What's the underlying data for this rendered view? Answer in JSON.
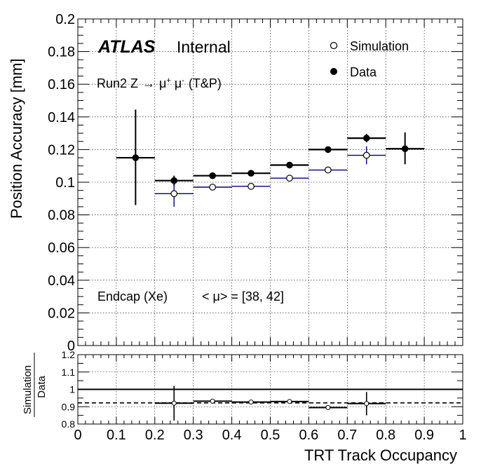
{
  "chart_data": [
    {
      "type": "scatter",
      "panel": "main",
      "ylabel": "Position Accuracy [mm]",
      "xlim": [
        0,
        1
      ],
      "ylim": [
        0,
        0.2
      ],
      "grid": true,
      "x_tick_values": [
        0,
        0.1,
        0.2,
        0.3,
        0.4,
        0.5,
        0.6,
        0.7,
        0.8,
        0.9,
        1
      ],
      "y_tick_labels": [
        "0",
        "0.02",
        "0.04",
        "0.06",
        "0.08",
        "0.1",
        "0.12",
        "0.14",
        "0.16",
        "0.18",
        "0.2"
      ],
      "annotations": {
        "atlas": "ATLAS",
        "internal": "Internal",
        "process_prefix": "Run2 Z",
        "process_arrow": "→",
        "process_mu": "μ",
        "process_plus": "+",
        "process_minus": "-",
        "process_suffix": "(T&P)",
        "region": "Endcap (Xe)",
        "pileup": "< μ> = [38, 42]"
      },
      "legend_position": "top-right",
      "series": [
        {
          "name": "Simulation",
          "marker": "open-circle",
          "color": "#00007a",
          "points": [
            {
              "x": 0.25,
              "y": 0.093,
              "ylo": 0.085,
              "yhi": 0.101
            },
            {
              "x": 0.35,
              "y": 0.097,
              "ylo": 0.096,
              "yhi": 0.098
            },
            {
              "x": 0.45,
              "y": 0.0975,
              "ylo": 0.0965,
              "yhi": 0.0985
            },
            {
              "x": 0.55,
              "y": 0.1025,
              "ylo": 0.1015,
              "yhi": 0.1035
            },
            {
              "x": 0.65,
              "y": 0.1075,
              "ylo": 0.1065,
              "yhi": 0.1085
            },
            {
              "x": 0.75,
              "y": 0.1165,
              "ylo": 0.111,
              "yhi": 0.122
            }
          ]
        },
        {
          "name": "Data",
          "marker": "filled-circle",
          "color": "#000000",
          "points": [
            {
              "x": 0.15,
              "y": 0.115,
              "ylo": 0.086,
              "yhi": 0.1445
            },
            {
              "x": 0.25,
              "y": 0.101,
              "ylo": 0.098,
              "yhi": 0.104
            },
            {
              "x": 0.35,
              "y": 0.104,
              "ylo": 0.1025,
              "yhi": 0.1055
            },
            {
              "x": 0.45,
              "y": 0.1055,
              "ylo": 0.1045,
              "yhi": 0.1065
            },
            {
              "x": 0.55,
              "y": 0.1105,
              "ylo": 0.1095,
              "yhi": 0.1115
            },
            {
              "x": 0.65,
              "y": 0.12,
              "ylo": 0.119,
              "yhi": 0.121
            },
            {
              "x": 0.75,
              "y": 0.127,
              "ylo": 0.1245,
              "yhi": 0.1295
            },
            {
              "x": 0.85,
              "y": 0.1205,
              "ylo": 0.111,
              "yhi": 0.1305
            }
          ]
        }
      ],
      "bin_half_width": 0.05
    },
    {
      "type": "scatter",
      "panel": "ratio",
      "ylabel_numerator": "Simulation",
      "ylabel_denominator": "Data",
      "xlabel": "TRT Track Occupancy",
      "xlim": [
        0,
        1
      ],
      "ylim": [
        0.8,
        1.2
      ],
      "grid": true,
      "x_tick_labels": [
        "0",
        "0.1",
        "0.2",
        "0.3",
        "0.4",
        "0.5",
        "0.6",
        "0.7",
        "0.8",
        "0.9",
        "1"
      ],
      "y_tick_labels": [
        "0.8",
        "0.9",
        "1",
        "1.1",
        "1.2"
      ],
      "reference_line": 1.0,
      "mean_line": 0.922,
      "points": [
        {
          "x": 0.25,
          "y": 0.92,
          "ylo": 0.82,
          "yhi": 1.02
        },
        {
          "x": 0.35,
          "y": 0.932,
          "ylo": 0.92,
          "yhi": 0.944
        },
        {
          "x": 0.45,
          "y": 0.927,
          "ylo": 0.918,
          "yhi": 0.936
        },
        {
          "x": 0.55,
          "y": 0.93,
          "ylo": 0.921,
          "yhi": 0.939
        },
        {
          "x": 0.65,
          "y": 0.895,
          "ylo": 0.888,
          "yhi": 0.902
        },
        {
          "x": 0.75,
          "y": 0.918,
          "ylo": 0.85,
          "yhi": 0.985
        }
      ]
    }
  ]
}
